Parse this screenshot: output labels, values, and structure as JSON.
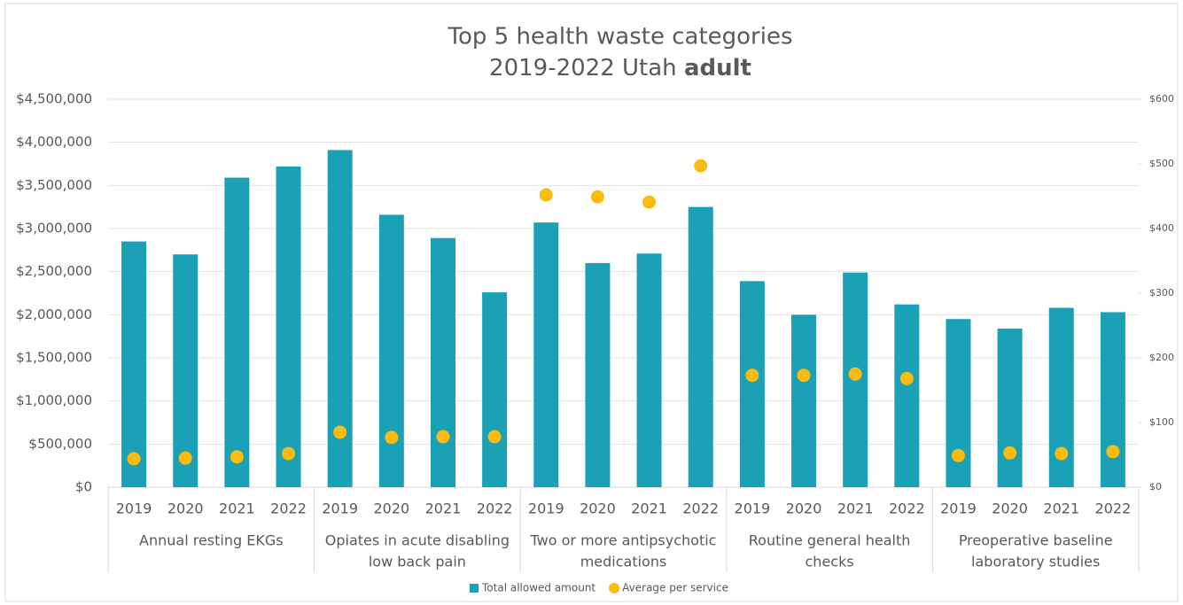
{
  "chart_data": {
    "type": "bar",
    "title": "Top 5 health waste categories",
    "subtitle": "2019-2022 Utah",
    "subtitle_emphasis": "adult",
    "categories": [
      "2019",
      "2020",
      "2021",
      "2022",
      "2019",
      "2020",
      "2021",
      "2022",
      "2019",
      "2020",
      "2021",
      "2022",
      "2019",
      "2020",
      "2021",
      "2022",
      "2019",
      "2020",
      "2021",
      "2022"
    ],
    "groups": [
      {
        "label": [
          "Annual resting EKGs"
        ]
      },
      {
        "label": [
          "Opiates in acute disabling",
          "low back pain"
        ]
      },
      {
        "label": [
          "Two or more antipsychotic",
          "medications"
        ]
      },
      {
        "label": [
          "Routine general health",
          "checks"
        ]
      },
      {
        "label": [
          "Preoperative baseline",
          "laboratory studies"
        ]
      }
    ],
    "series": [
      {
        "name": "Total allowed amount",
        "type": "bar",
        "color": "#1aa1b6",
        "values": [
          2850000,
          2700000,
          3590000,
          3720000,
          3910000,
          3160000,
          2890000,
          2260000,
          3070000,
          2600000,
          2710000,
          3250000,
          2390000,
          2000000,
          2490000,
          2120000,
          1950000,
          1840000,
          2080000,
          2030000
        ]
      },
      {
        "name": "Average per service",
        "type": "scatter",
        "color": "#fbbc0f",
        "axis": "y2",
        "values": [
          44,
          45,
          47,
          52,
          85,
          77,
          78,
          78,
          452,
          449,
          441,
          497,
          173,
          173,
          175,
          168,
          49,
          53,
          52,
          55
        ]
      }
    ],
    "ylim": [
      0,
      4500000
    ],
    "yticks": [
      {
        "value": 0,
        "label": "$0"
      },
      {
        "value": 500000,
        "label": "$500,000"
      },
      {
        "value": 1000000,
        "label": "$1,000,000"
      },
      {
        "value": 1500000,
        "label": "$1,500,000"
      },
      {
        "value": 2000000,
        "label": "$2,000,000"
      },
      {
        "value": 2500000,
        "label": "$2,500,000"
      },
      {
        "value": 3000000,
        "label": "$3,000,000"
      },
      {
        "value": 3500000,
        "label": "$3,500,000"
      },
      {
        "value": 4000000,
        "label": "$4,000,000"
      },
      {
        "value": 4500000,
        "label": "$4,500,000"
      }
    ],
    "y2lim": [
      0,
      600
    ],
    "y2ticks": [
      {
        "value": 0,
        "label": "$0"
      },
      {
        "value": 100,
        "label": "$100"
      },
      {
        "value": 200,
        "label": "$200"
      },
      {
        "value": 300,
        "label": "$300"
      },
      {
        "value": 400,
        "label": "$400"
      },
      {
        "value": 500,
        "label": "$500"
      },
      {
        "value": 600,
        "label": "$600"
      }
    ],
    "grid": true,
    "legend": "bottom"
  }
}
